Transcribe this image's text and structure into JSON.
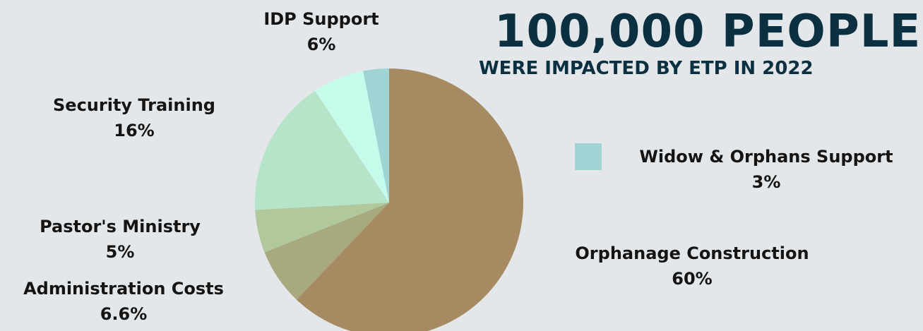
{
  "headline": {
    "title": "100,000 PEOPLE",
    "subtitle": "WERE IMPACTED BY ETP IN 2022"
  },
  "chart_data": {
    "type": "pie",
    "slices": [
      {
        "label": "Orphanage Construction",
        "value_text": "60%",
        "value": 60,
        "color": "#a68b62"
      },
      {
        "label": "Administration Costs",
        "value_text": "6.6%",
        "value": 6.6,
        "color": "#a9a97f"
      },
      {
        "label": "Pastor's Ministry",
        "value_text": "5%",
        "value": 5,
        "color": "#b1c89c"
      },
      {
        "label": "Security Training",
        "value_text": "16%",
        "value": 16,
        "color": "#b5e4c8"
      },
      {
        "label": "IDP Support",
        "value_text": "6%",
        "value": 6,
        "color": "#c6fbec"
      },
      {
        "label": "Widow & Orphans Support",
        "value_text": "3%",
        "value": 3,
        "color": "#9fd3d4"
      }
    ],
    "legend": {
      "label": "Widow & Orphans Support",
      "color": "#9fd3d4"
    }
  }
}
